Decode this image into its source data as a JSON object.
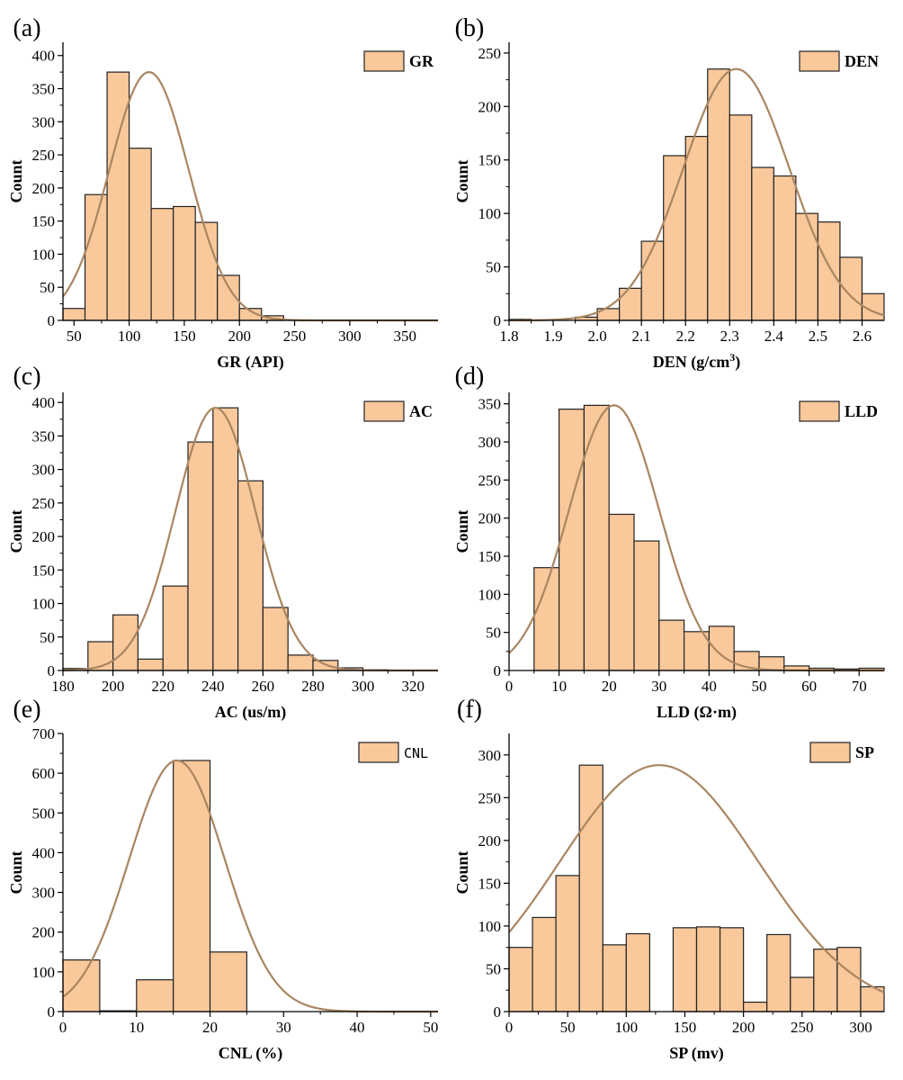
{
  "colors": {
    "bar_fill": "#f9c89b",
    "bar_stroke": "#222222",
    "curve": "#a98661",
    "axis": "#000000"
  },
  "chart_data": [
    {
      "type": "bar",
      "panel_label": "(a)",
      "legend": "GR",
      "xlabel": "GR (API)",
      "ylabel": "Count",
      "xlim": [
        40,
        380
      ],
      "ylim": [
        0,
        420
      ],
      "xticks": [
        50,
        100,
        150,
        200,
        250,
        300,
        350
      ],
      "yticks": [
        0,
        50,
        100,
        150,
        200,
        250,
        300,
        350,
        400
      ],
      "bin_edges": [
        40,
        60,
        80,
        100,
        120,
        140,
        160,
        180,
        200,
        220,
        240
      ],
      "values": [
        18,
        190,
        375,
        260,
        169,
        172,
        148,
        68,
        18,
        7
      ],
      "fit": {
        "mean": 118,
        "sd": 36,
        "peak": 375
      }
    },
    {
      "type": "bar",
      "panel_label": "(b)",
      "legend": "DEN",
      "xlabel": "DEN (g/cm",
      "xlabel_sup": "3",
      "xlabel_end": ")",
      "ylabel": "Count",
      "xlim": [
        1.8,
        2.65
      ],
      "ylim": [
        0,
        260
      ],
      "xticks": [
        1.8,
        1.9,
        2.0,
        2.1,
        2.2,
        2.3,
        2.4,
        2.5,
        2.6
      ],
      "yticks": [
        0,
        50,
        100,
        150,
        200,
        250
      ],
      "bin_edges": [
        1.8,
        1.85,
        1.9,
        1.95,
        2.0,
        2.05,
        2.1,
        2.15,
        2.2,
        2.25,
        2.3,
        2.35,
        2.4,
        2.45,
        2.5,
        2.55,
        2.6,
        2.65
      ],
      "values": [
        1,
        0,
        0,
        3,
        11,
        30,
        74,
        154,
        172,
        235,
        192,
        143,
        135,
        100,
        92,
        59,
        25
      ],
      "fit": {
        "mean": 2.315,
        "sd": 0.12,
        "peak": 235
      }
    },
    {
      "type": "bar",
      "panel_label": "(c)",
      "legend": "AC",
      "xlabel": "AC (us/m)",
      "ylabel": "Count",
      "xlim": [
        180,
        330
      ],
      "ylim": [
        0,
        415
      ],
      "xticks": [
        180,
        200,
        220,
        240,
        260,
        280,
        300,
        320
      ],
      "yticks": [
        0,
        50,
        100,
        150,
        200,
        250,
        300,
        350,
        400
      ],
      "bin_edges": [
        180,
        190,
        200,
        210,
        220,
        230,
        240,
        250,
        260,
        270,
        280,
        290,
        300,
        310
      ],
      "values": [
        3,
        43,
        83,
        17,
        126,
        341,
        392,
        283,
        94,
        23,
        15,
        4,
        1
      ],
      "fit": {
        "mean": 241,
        "sd": 16,
        "peak": 392
      }
    },
    {
      "type": "bar",
      "panel_label": "(d)",
      "legend": "LLD",
      "xlabel": "LLD (Ω·m)",
      "ylabel": "Count",
      "xlim": [
        0,
        75
      ],
      "ylim": [
        0,
        365
      ],
      "xticks": [
        0,
        10,
        20,
        30,
        40,
        50,
        60,
        70
      ],
      "yticks": [
        0,
        50,
        100,
        150,
        200,
        250,
        300,
        350
      ],
      "bin_edges": [
        5,
        10,
        15,
        20,
        25,
        30,
        35,
        40,
        45,
        50,
        55,
        60,
        65,
        70,
        75
      ],
      "values": [
        135,
        343,
        348,
        205,
        170,
        66,
        51,
        58,
        25,
        18,
        6,
        3,
        2,
        3
      ],
      "fit": {
        "mean": 21,
        "sd": 9,
        "peak": 348
      }
    },
    {
      "type": "bar",
      "panel_label": "(e)",
      "legend": "CNL",
      "legend_mono": true,
      "xlabel": "CNL (%)",
      "ylabel": "Count",
      "xlim": [
        0,
        51
      ],
      "ylim": [
        0,
        700
      ],
      "xticks": [
        0,
        10,
        20,
        30,
        40,
        50
      ],
      "yticks": [
        0,
        100,
        200,
        300,
        400,
        500,
        600,
        700
      ],
      "bin_edges": [
        0,
        5,
        10,
        15,
        20,
        25
      ],
      "values": [
        130,
        2,
        80,
        632,
        150
      ],
      "fit": {
        "mean": 15.5,
        "sd": 6.5,
        "peak": 632
      }
    },
    {
      "type": "bar",
      "panel_label": "(f)",
      "legend": "SP",
      "xlabel": "SP (mv)",
      "ylabel": "Count",
      "xlim": [
        0,
        320
      ],
      "ylim": [
        0,
        325
      ],
      "xticks": [
        0,
        50,
        100,
        150,
        200,
        250,
        300
      ],
      "yticks": [
        0,
        50,
        100,
        150,
        200,
        250,
        300
      ],
      "bin_edges": [
        0,
        20,
        40,
        60,
        80,
        100,
        120,
        140,
        160,
        180,
        200,
        220,
        240,
        260,
        280,
        300,
        320
      ],
      "values": [
        75,
        110,
        159,
        288,
        78,
        91,
        0,
        98,
        99,
        98,
        11,
        90,
        40,
        73,
        75,
        29
      ],
      "fit": {
        "mean": 128,
        "sd": 85,
        "peak": 288
      }
    }
  ]
}
